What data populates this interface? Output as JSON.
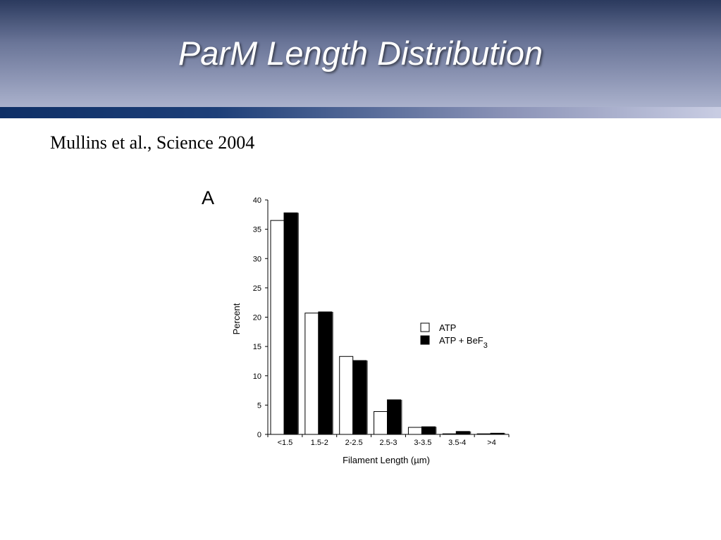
{
  "slide": {
    "title": "ParM Length Distribution",
    "citation": "Mullins et al., Science 2004"
  },
  "colors": {
    "header_dark": "#2b3a5e",
    "header_light": "#aab1cc",
    "band_blue": "#0e2f66"
  },
  "chart_data": {
    "type": "bar",
    "panel_label": "A",
    "categories": [
      "<1.5",
      "1.5-2",
      "2-2.5",
      "2.5-3",
      "3-3.5",
      "3.5-4",
      ">4"
    ],
    "series": [
      {
        "name": "ATP",
        "values": [
          36.5,
          20.7,
          13.3,
          3.9,
          1.2,
          0.1,
          0.1
        ],
        "fill": "#ffffff"
      },
      {
        "name": "ATP + BeF",
        "subscript": "3",
        "values": [
          37.8,
          20.9,
          12.6,
          5.9,
          1.3,
          0.5,
          0.2
        ],
        "fill": "#000000"
      }
    ],
    "xlabel": "Filament Length (µm)",
    "ylabel": "Percent",
    "ylim": [
      0,
      40
    ],
    "yticks": [
      0,
      5,
      10,
      15,
      20,
      25,
      30,
      35,
      40
    ],
    "legend_position": "right-middle",
    "grid": false
  }
}
